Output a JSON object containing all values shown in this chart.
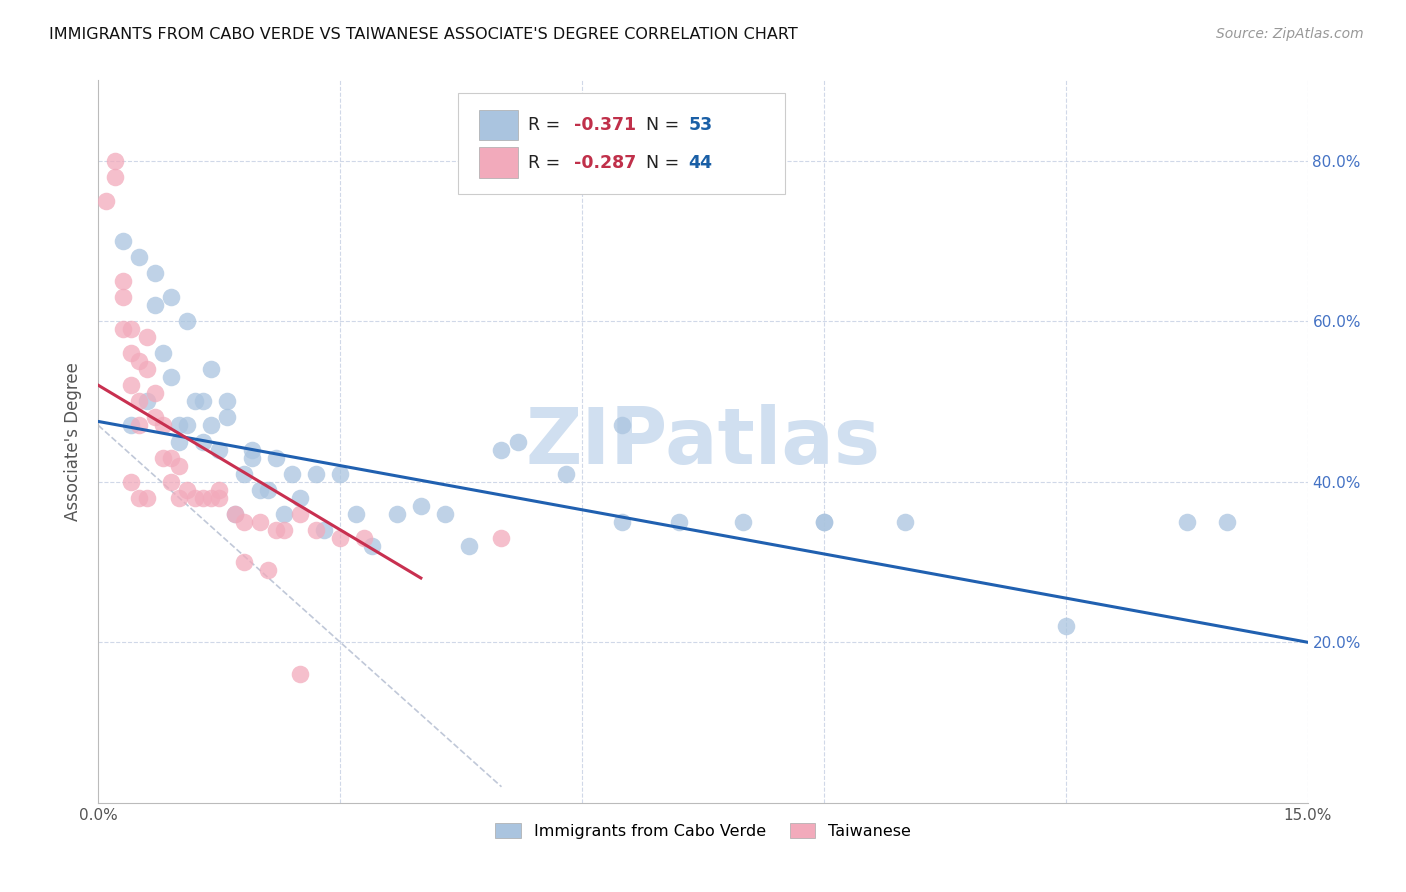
{
  "title": "IMMIGRANTS FROM CABO VERDE VS TAIWANESE ASSOCIATE'S DEGREE CORRELATION CHART",
  "source": "Source: ZipAtlas.com",
  "ylabel": "Associate's Degree",
  "xlim": [
    0.0,
    0.15
  ],
  "ylim": [
    0.0,
    0.9
  ],
  "xticks": [
    0.0,
    0.03,
    0.06,
    0.09,
    0.12,
    0.15
  ],
  "xticklabels": [
    "0.0%",
    "",
    "",
    "",
    "",
    "15.0%"
  ],
  "yticks_right": [
    0.2,
    0.4,
    0.6,
    0.8
  ],
  "ytick_right_labels": [
    "20.0%",
    "40.0%",
    "60.0%",
    "80.0%"
  ],
  "blue_scatter_color": "#aac4df",
  "pink_scatter_color": "#f2aabb",
  "blue_line_color": "#2060b0",
  "pink_line_color": "#c83050",
  "dashed_line_color": "#c0c8d8",
  "grid_color": "#d0d8e8",
  "watermark": "ZIPatlas",
  "watermark_color": "#d0dff0",
  "legend_label1": "Immigrants from Cabo Verde",
  "legend_label2": "Taiwanese",
  "blue_x": [
    0.004,
    0.006,
    0.007,
    0.008,
    0.009,
    0.01,
    0.01,
    0.011,
    0.012,
    0.013,
    0.013,
    0.014,
    0.015,
    0.016,
    0.017,
    0.018,
    0.019,
    0.02,
    0.022,
    0.024,
    0.025,
    0.027,
    0.028,
    0.03,
    0.032,
    0.034,
    0.037,
    0.04,
    0.043,
    0.046,
    0.052,
    0.058,
    0.065,
    0.072,
    0.08,
    0.09,
    0.1,
    0.12,
    0.135,
    0.14,
    0.003,
    0.005,
    0.007,
    0.009,
    0.011,
    0.014,
    0.016,
    0.019,
    0.021,
    0.023,
    0.05,
    0.065,
    0.09
  ],
  "blue_y": [
    0.47,
    0.5,
    0.62,
    0.56,
    0.53,
    0.47,
    0.45,
    0.47,
    0.5,
    0.5,
    0.45,
    0.47,
    0.44,
    0.5,
    0.36,
    0.41,
    0.44,
    0.39,
    0.43,
    0.41,
    0.38,
    0.41,
    0.34,
    0.41,
    0.36,
    0.32,
    0.36,
    0.37,
    0.36,
    0.32,
    0.45,
    0.41,
    0.35,
    0.35,
    0.35,
    0.35,
    0.35,
    0.22,
    0.35,
    0.35,
    0.7,
    0.68,
    0.66,
    0.63,
    0.6,
    0.54,
    0.48,
    0.43,
    0.39,
    0.36,
    0.44,
    0.47,
    0.35
  ],
  "pink_x": [
    0.001,
    0.002,
    0.003,
    0.003,
    0.004,
    0.004,
    0.004,
    0.005,
    0.005,
    0.005,
    0.006,
    0.006,
    0.007,
    0.007,
    0.008,
    0.008,
    0.009,
    0.009,
    0.01,
    0.01,
    0.011,
    0.012,
    0.013,
    0.014,
    0.015,
    0.017,
    0.018,
    0.02,
    0.022,
    0.023,
    0.025,
    0.027,
    0.03,
    0.033,
    0.002,
    0.003,
    0.004,
    0.005,
    0.006,
    0.05,
    0.015,
    0.018,
    0.021,
    0.025
  ],
  "pink_y": [
    0.75,
    0.78,
    0.63,
    0.59,
    0.59,
    0.56,
    0.52,
    0.55,
    0.5,
    0.47,
    0.58,
    0.54,
    0.51,
    0.48,
    0.47,
    0.43,
    0.43,
    0.4,
    0.42,
    0.38,
    0.39,
    0.38,
    0.38,
    0.38,
    0.38,
    0.36,
    0.35,
    0.35,
    0.34,
    0.34,
    0.36,
    0.34,
    0.33,
    0.33,
    0.8,
    0.65,
    0.4,
    0.38,
    0.38,
    0.33,
    0.39,
    0.3,
    0.29,
    0.16
  ],
  "blue_trend_x": [
    0.0,
    0.15
  ],
  "blue_trend_y": [
    0.475,
    0.2
  ],
  "pink_trend_x": [
    0.0,
    0.04
  ],
  "pink_trend_y": [
    0.52,
    0.28
  ],
  "dashed_trend_x": [
    0.0,
    0.05
  ],
  "dashed_trend_y": [
    0.47,
    0.02
  ]
}
